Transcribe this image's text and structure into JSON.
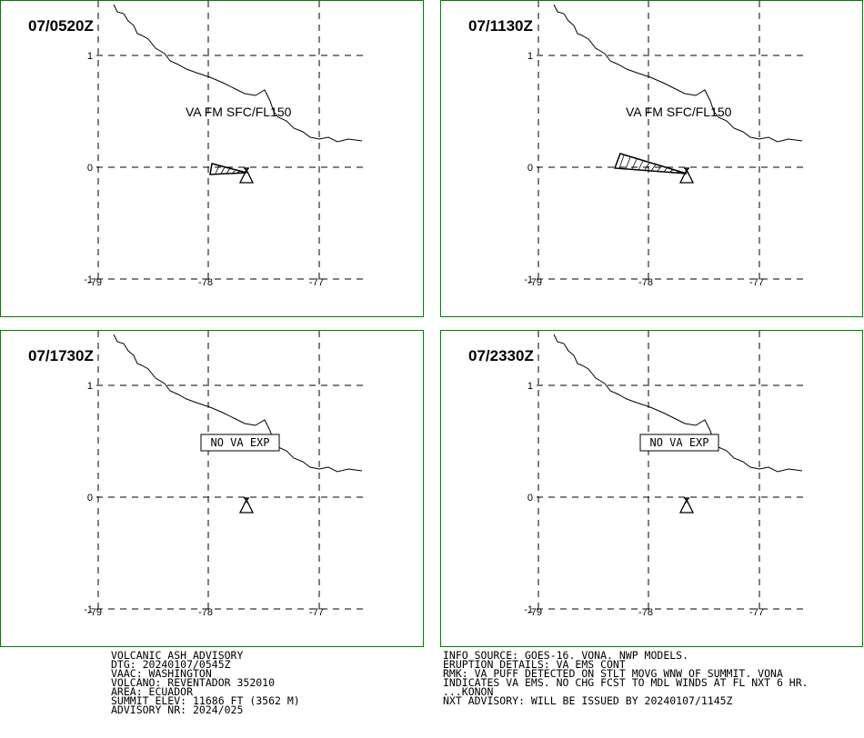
{
  "colors": {
    "border": "#008000",
    "ink": "#000000",
    "background": "#ffffff"
  },
  "axes": {
    "lon_labels": [
      "-79",
      "-78",
      "-77"
    ],
    "lat_labels": [
      "1",
      "0",
      "-1"
    ]
  },
  "panels": [
    {
      "time": "07/0520Z",
      "label": "VA FM SFC/FL150",
      "boxed": false
    },
    {
      "time": "07/1130Z",
      "label": "VA FM SFC/FL150",
      "boxed": false
    },
    {
      "time": "07/1730Z",
      "label": "NO VA EXP",
      "boxed": true
    },
    {
      "time": "07/2330Z",
      "label": "NO VA EXP",
      "boxed": true
    }
  ],
  "advisory_left": [
    "VOLCANIC ASH ADVISORY",
    "DTG: 20240107/0545Z",
    "VAAC: WASHINGTON",
    "VOLCANO: REVENTADOR 352010",
    "AREA: ECUADOR",
    "SUMMIT ELEV: 11686 FT (3562 M)",
    "ADVISORY NR: 2024/025"
  ],
  "advisory_right": [
    "INFO SOURCE: GOES-16. VONA. NWP MODELS.",
    "ERUPTION DETAILS: VA EMS CONT",
    "RMK: VA PUFF DETECTED ON STLT MOVG WNW OF SUMMIT. VONA",
    "INDICATES VA EMS. NO CHG FCST TO MDL WINDS AT FL NXT 6 HR.",
    "...KONON",
    "NXT ADVISORY: WILL BE ISSUED BY 20240107/1145Z"
  ]
}
